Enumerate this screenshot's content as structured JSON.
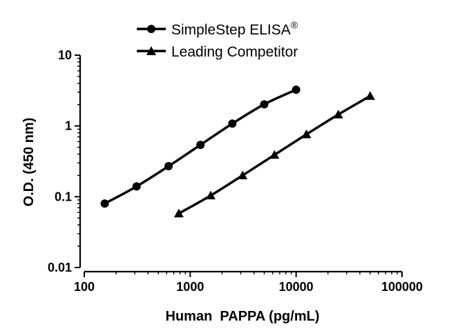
{
  "chart_data": {
    "type": "line",
    "title": "",
    "xlabel": "Human  PAPPA (pg/mL)",
    "ylabel": "O.D. (450 nm)",
    "xscale": "log",
    "yscale": "log",
    "xlim": [
      100,
      100000
    ],
    "ylim": [
      0.01,
      10
    ],
    "xticks": [
      100,
      1000,
      10000,
      100000
    ],
    "xtick_labels": [
      "100",
      "1000",
      "10000",
      "100000"
    ],
    "yticks": [
      0.01,
      0.1,
      1,
      10
    ],
    "ytick_labels": [
      "0.01",
      "0.1",
      "1",
      "10"
    ],
    "legend_position": "top-center",
    "series": [
      {
        "name": "SimpleStep ELISA",
        "name_superscript": "®",
        "marker": "circle",
        "x": [
          156,
          312,
          625,
          1250,
          2500,
          5000,
          10000
        ],
        "y": [
          0.08,
          0.14,
          0.27,
          0.54,
          1.08,
          2.02,
          3.25
        ]
      },
      {
        "name": "Leading Competitor",
        "marker": "triangle",
        "x": [
          781,
          1562,
          3125,
          6250,
          12500,
          25000,
          50000
        ],
        "y": [
          0.058,
          0.104,
          0.2,
          0.39,
          0.76,
          1.45,
          2.65
        ]
      }
    ]
  }
}
